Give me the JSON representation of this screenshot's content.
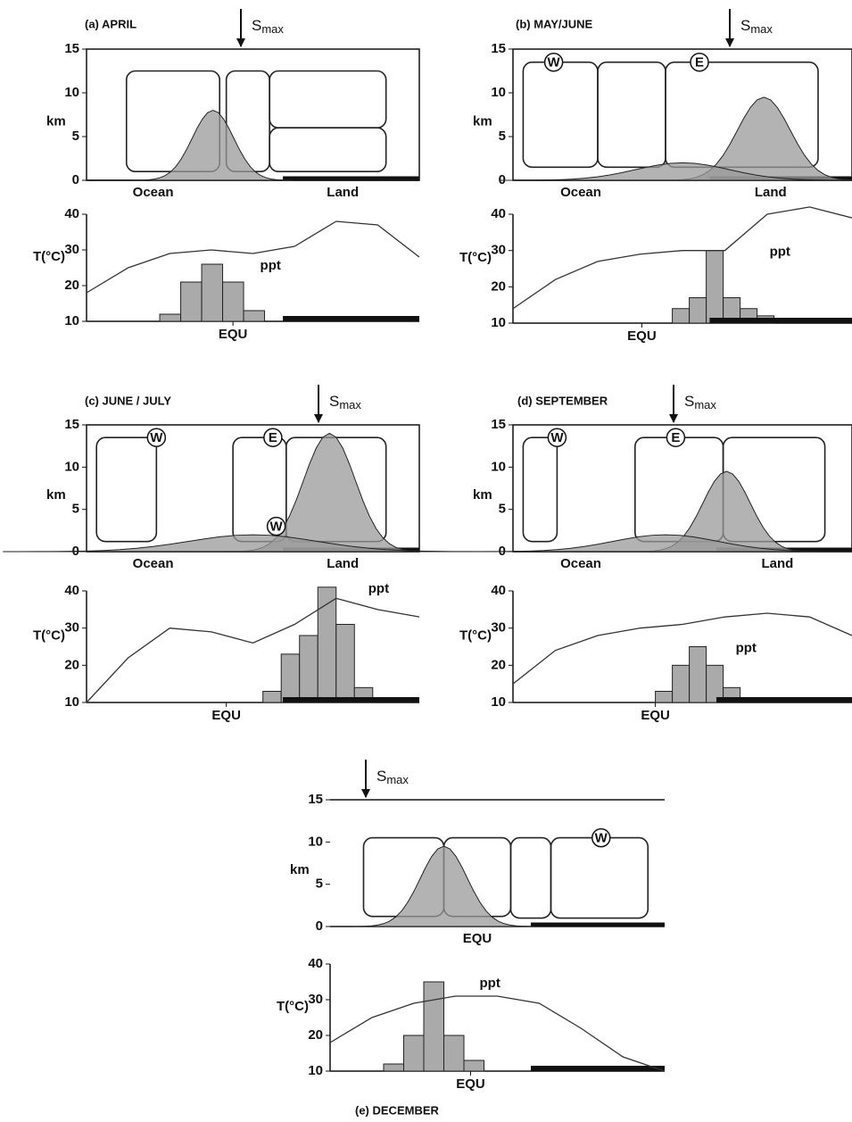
{
  "panels": [
    {
      "title": "(a) APRIL",
      "smax": "S",
      "smax_sub": "max",
      "upper": {
        "ylabel": "km",
        "ylim": [
          0,
          15
        ],
        "yticks": [
          0,
          5,
          10,
          15
        ],
        "x_labels": [
          "Ocean",
          "Land"
        ],
        "circles": []
      },
      "lower": {
        "ylabel": "T(°C)",
        "ylim": [
          10,
          40
        ],
        "yticks": [
          10,
          20,
          30,
          40
        ],
        "temperature": [
          18,
          25,
          29,
          30,
          29,
          31,
          38,
          37,
          28
        ],
        "ppt_label": "ppt",
        "ppt": [
          12,
          21,
          26,
          21,
          13
        ],
        "x_labels": [
          "EQU"
        ]
      }
    },
    {
      "title": "(b) MAY/JUNE",
      "smax": "S",
      "smax_sub": "max",
      "upper": {
        "ylabel": "km",
        "ylim": [
          0,
          15
        ],
        "yticks": [
          0,
          5,
          10,
          15
        ],
        "x_labels": [
          "Ocean",
          "Land"
        ],
        "circles": [
          "W",
          "E"
        ]
      },
      "lower": {
        "ylabel": "T(°C)",
        "ylim": [
          10,
          40
        ],
        "yticks": [
          10,
          20,
          30,
          40
        ],
        "temperature": [
          14,
          22,
          27,
          29,
          30,
          30,
          40,
          42,
          39
        ],
        "ppt_label": "ppt",
        "ppt": [
          14,
          17,
          30,
          17,
          14,
          12
        ],
        "x_labels": [
          "EQU"
        ]
      }
    },
    {
      "title": "(c) JUNE / JULY",
      "smax": "S",
      "smax_sub": "max",
      "upper": {
        "ylabel": "km",
        "ylim": [
          0,
          15
        ],
        "yticks": [
          0,
          5,
          10,
          15
        ],
        "x_labels": [
          "Ocean",
          "Land"
        ],
        "circles": [
          "W",
          "E",
          "W"
        ]
      },
      "lower": {
        "ylabel": "T(°C)",
        "ylim": [
          10,
          40
        ],
        "yticks": [
          10,
          20,
          30,
          40
        ],
        "temperature": [
          10,
          22,
          30,
          29,
          26,
          31,
          38,
          35,
          33
        ],
        "ppt_label": "ppt",
        "ppt": [
          13,
          23,
          28,
          41,
          31,
          14
        ],
        "x_labels": [
          "EQU"
        ]
      }
    },
    {
      "title": "(d) SEPTEMBER",
      "smax": "S",
      "smax_sub": "max",
      "upper": {
        "ylabel": "km",
        "ylim": [
          0,
          15
        ],
        "yticks": [
          0,
          5,
          10,
          15
        ],
        "x_labels": [
          "Ocean",
          "Land"
        ],
        "circles": [
          "W",
          "E"
        ]
      },
      "lower": {
        "ylabel": "T(°C)",
        "ylim": [
          10,
          40
        ],
        "yticks": [
          10,
          20,
          30,
          40
        ],
        "temperature": [
          15,
          24,
          28,
          30,
          31,
          33,
          34,
          33,
          28
        ],
        "ppt_label": "ppt",
        "ppt": [
          13,
          20,
          25,
          20,
          14
        ],
        "x_labels": [
          "EQU"
        ]
      }
    },
    {
      "title": "(e) DECEMBER",
      "smax": "S",
      "smax_sub": "max",
      "upper": {
        "ylabel": "km",
        "ylim": [
          0,
          15
        ],
        "yticks": [
          0,
          5,
          10,
          15
        ],
        "x_labels": [
          "EQU"
        ],
        "circles": [
          "W"
        ]
      },
      "lower": {
        "ylabel": "T(°C)",
        "ylim": [
          10,
          40
        ],
        "yticks": [
          10,
          20,
          30,
          40
        ],
        "temperature": [
          18,
          25,
          29,
          31,
          31,
          29,
          22,
          14,
          10
        ],
        "ppt_label": "ppt",
        "ppt": [
          12,
          20,
          35,
          20,
          13
        ],
        "x_labels": [
          "EQU"
        ]
      }
    }
  ]
}
